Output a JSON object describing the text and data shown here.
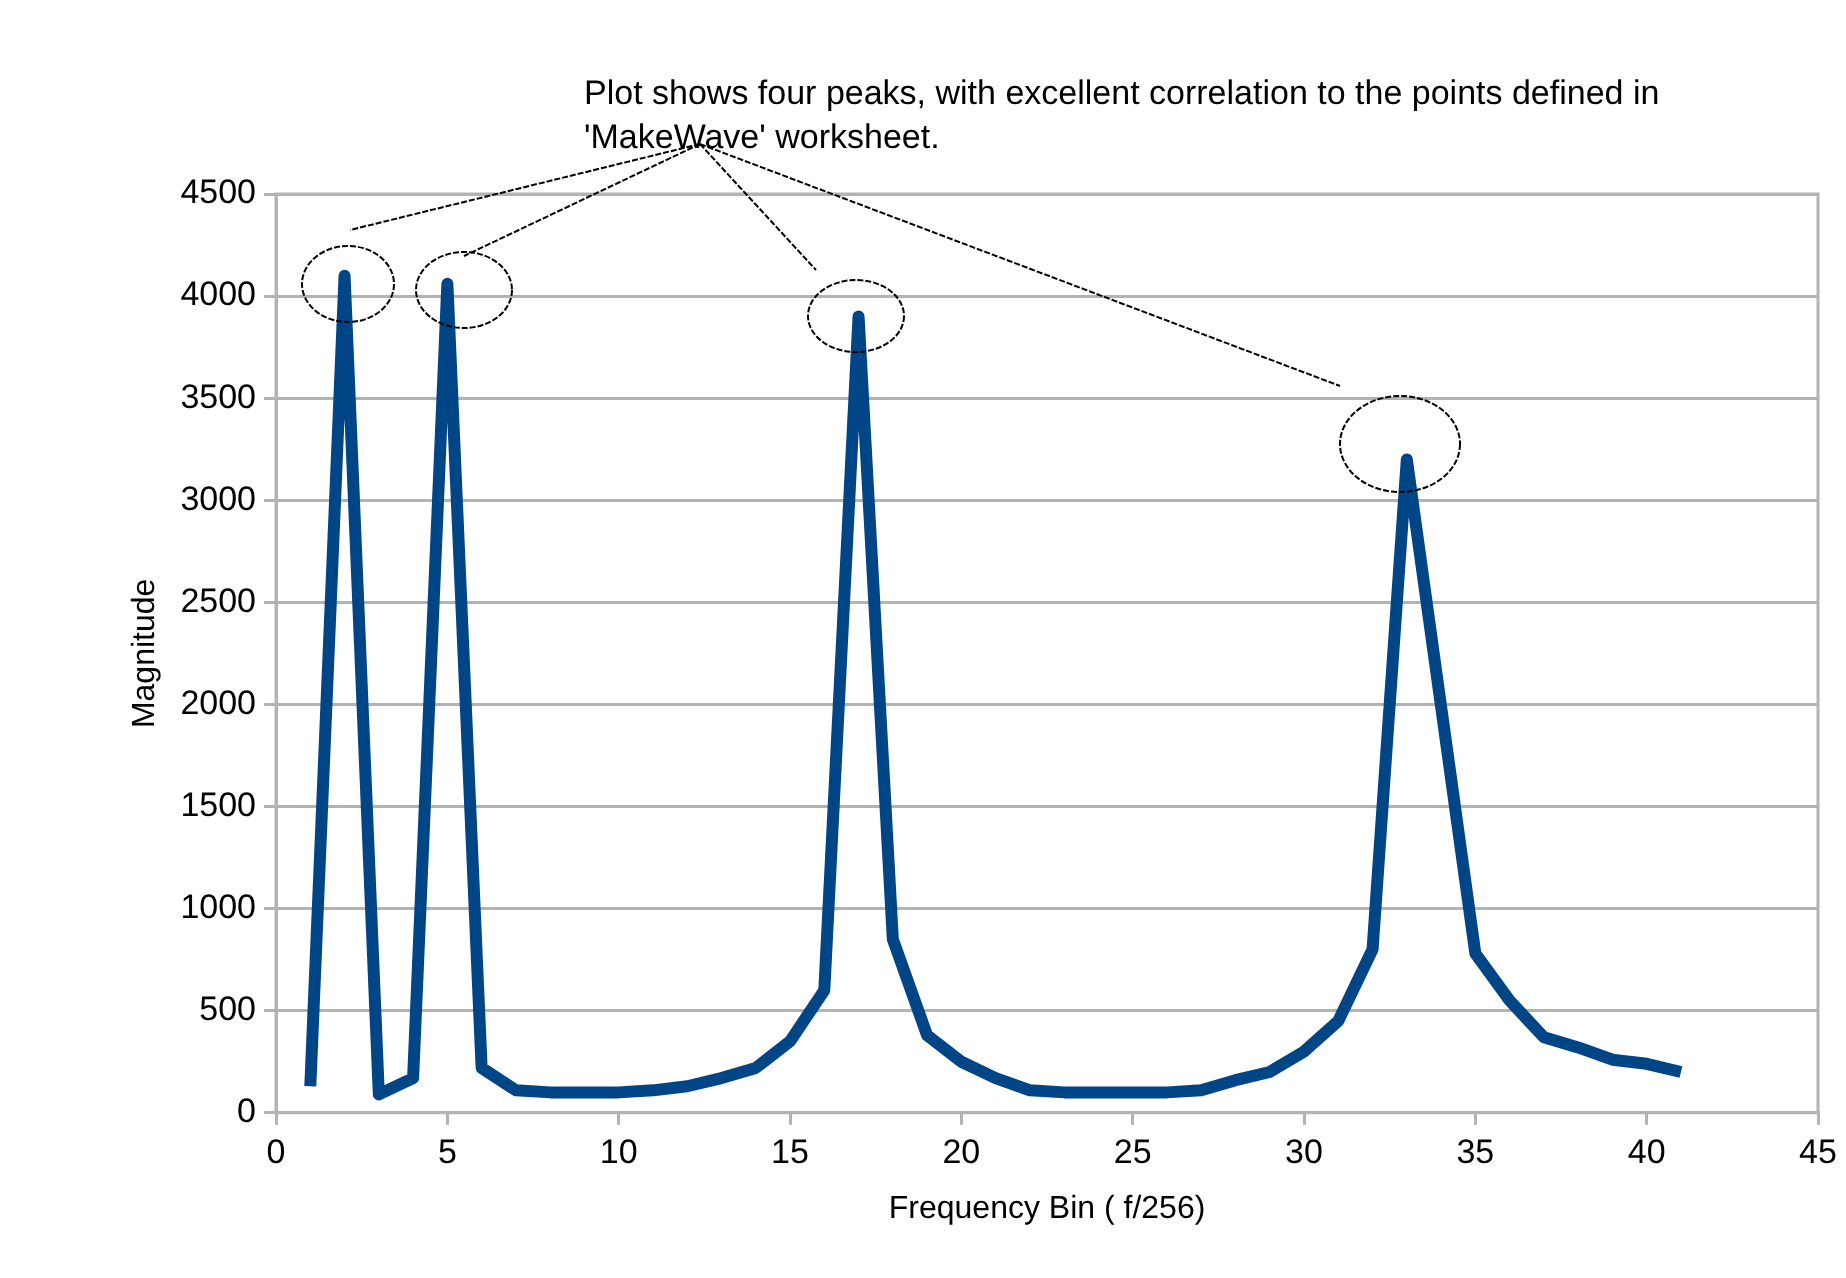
{
  "chart_data": {
    "type": "line",
    "xlabel": "Frequency Bin ( f/256)",
    "ylabel": "Magnitude",
    "annotations": [
      "Plot shows four peaks, with excellent correlation to the points defined in 'MakeWave' worksheet."
    ],
    "x": [
      1,
      2,
      3,
      4,
      5,
      6,
      7,
      8,
      9,
      10,
      11,
      12,
      13,
      14,
      15,
      16,
      17,
      18,
      19,
      20,
      21,
      22,
      23,
      24,
      25,
      26,
      27,
      28,
      29,
      30,
      31,
      32,
      33,
      34,
      35,
      36,
      37,
      38,
      39,
      40,
      41
    ],
    "series": [
      {
        "color": "#004586",
        "values": [
          130,
          4100,
          90,
          170,
          4060,
          220,
          110,
          100,
          100,
          100,
          110,
          130,
          170,
          220,
          350,
          600,
          3900,
          850,
          380,
          250,
          170,
          110,
          100,
          100,
          100,
          100,
          110,
          160,
          200,
          300,
          450,
          800,
          3200,
          1990,
          780,
          550,
          370,
          320,
          260,
          240,
          200
        ]
      }
    ],
    "xlim": [
      0,
      45
    ],
    "xticks": [
      0,
      5,
      10,
      15,
      20,
      25,
      30,
      35,
      40,
      45
    ],
    "ylim": [
      0,
      4500
    ],
    "yticks": [
      0,
      500,
      1000,
      1500,
      2000,
      2500,
      3000,
      3500,
      4000,
      4500
    ],
    "grid": "y",
    "legend": false,
    "marker": "none",
    "line_style": "solid"
  }
}
